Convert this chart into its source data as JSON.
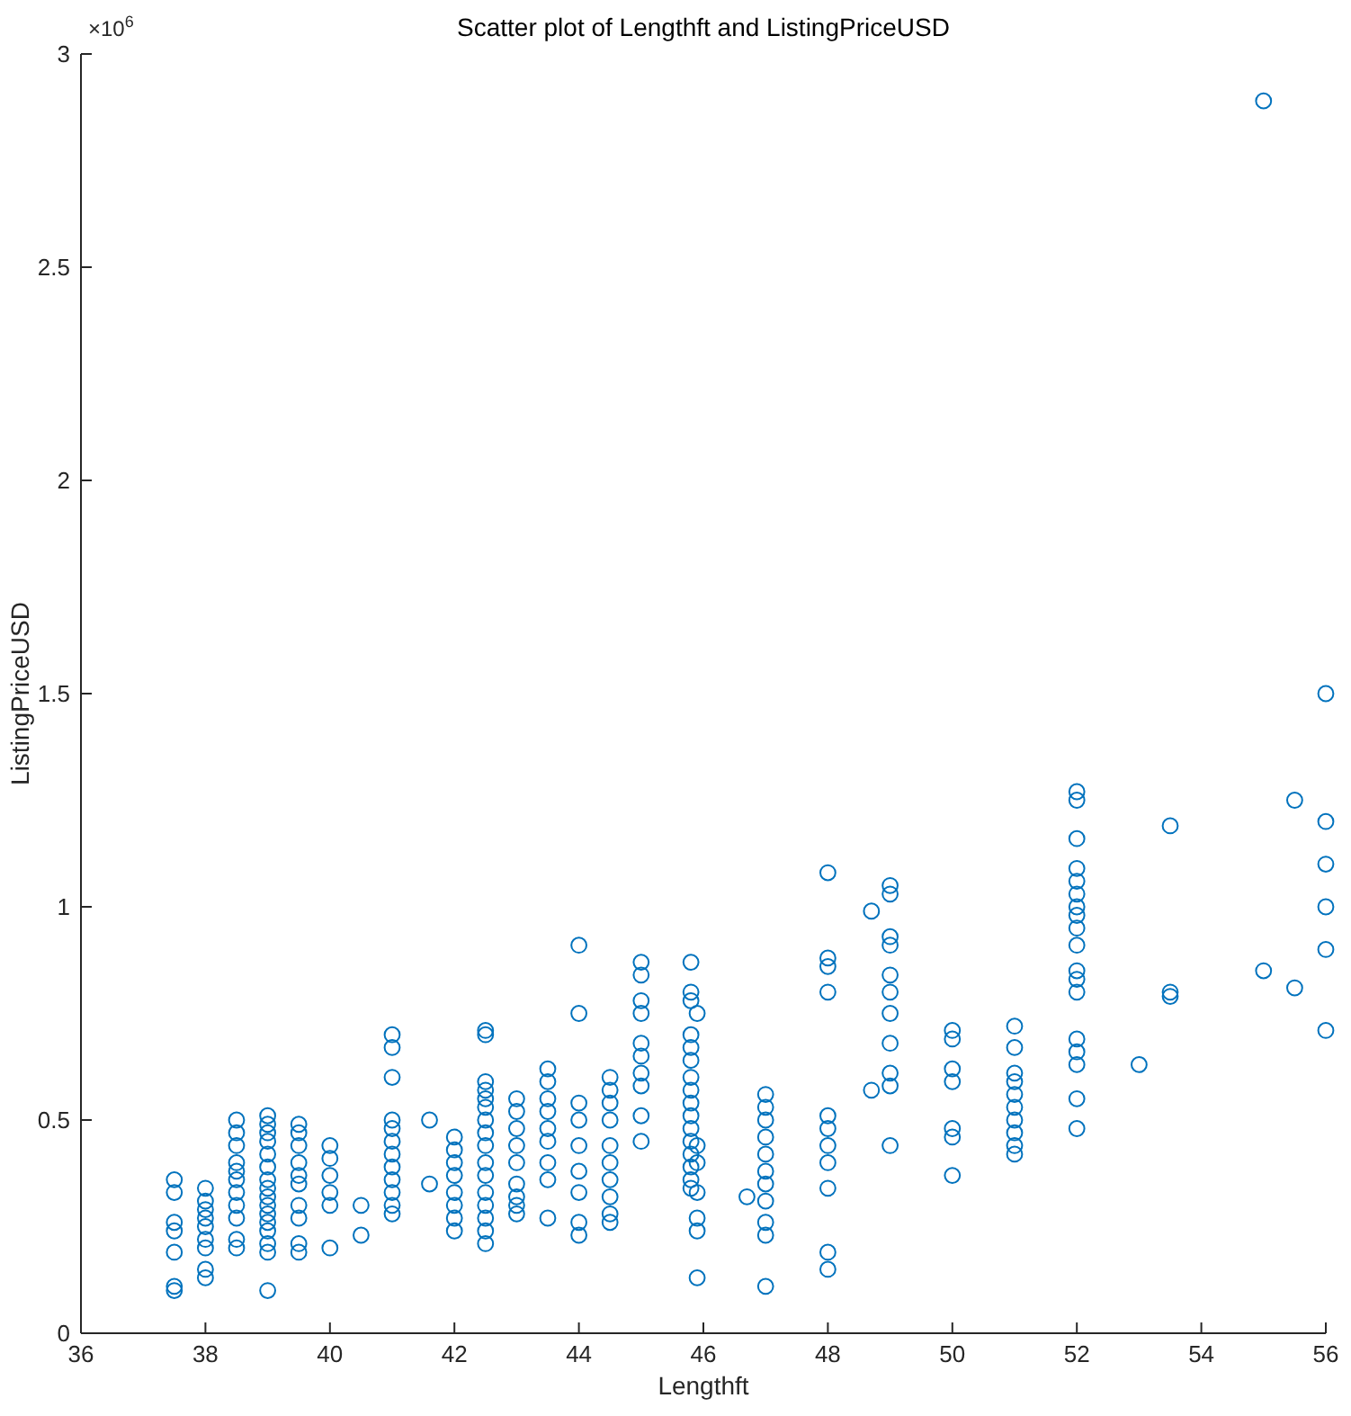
{
  "chart_data": {
    "type": "scatter",
    "title": "Scatter plot of Lengthft and ListingPriceUSD",
    "xlabel": "Lengthft",
    "ylabel": "ListingPriceUSD",
    "annotations": [
      "×10$^{6}$"
    ],
    "marker": "circle",
    "grid": false,
    "xlim": [
      36,
      56
    ],
    "xticks": [
      36,
      38,
      40,
      42,
      44,
      46,
      48,
      50,
      52,
      54,
      56
    ],
    "ylim": [
      0,
      3
    ],
    "yticks": [
      0,
      0.5,
      1,
      1.5,
      2,
      2.5,
      3
    ],
    "series": [
      {
        "color": "#0072bd",
        "x": [
          37.5,
          37.5,
          37.5,
          37.5,
          37.5,
          37.5,
          37.5,
          38,
          38,
          38,
          38,
          38,
          38,
          38,
          38,
          38,
          38.5,
          38.5,
          38.5,
          38.5,
          38.5,
          38.5,
          38.5,
          38.5,
          38.5,
          38.5,
          38.5,
          39,
          39,
          39,
          39,
          39,
          39,
          39,
          39,
          39,
          39,
          39,
          39,
          39,
          39,
          39,
          39,
          39.5,
          39.5,
          39.5,
          39.5,
          39.5,
          39.5,
          39.5,
          39.5,
          39.5,
          39.5,
          40,
          40,
          40,
          40,
          40,
          40,
          40.5,
          40.5,
          41,
          41,
          41,
          41,
          41,
          41,
          41,
          41,
          41,
          41,
          41,
          41,
          41.6,
          41.6,
          42,
          42,
          42,
          42,
          42,
          42,
          42,
          42,
          42.5,
          42.5,
          42.5,
          42.5,
          42.5,
          42.5,
          42.5,
          42.5,
          42.5,
          42.5,
          42.5,
          42.5,
          42.5,
          42.5,
          42.5,
          42.5,
          43,
          43,
          43,
          43,
          43,
          43,
          43,
          43,
          43,
          43.5,
          43.5,
          43.5,
          43.5,
          43.5,
          43.5,
          43.5,
          43.5,
          43.5,
          44,
          44,
          44,
          44,
          44,
          44,
          44,
          44,
          44,
          44.5,
          44.5,
          44.5,
          44.5,
          44.5,
          44.5,
          44.5,
          44.5,
          44.5,
          44.5,
          45,
          45,
          45,
          45,
          45,
          45,
          45,
          45,
          45,
          45,
          45.8,
          45.8,
          45.8,
          45.8,
          45.8,
          45.8,
          45.8,
          45.8,
          45.8,
          45.8,
          45.8,
          45.8,
          45.8,
          45.8,
          45.8,
          45.8,
          45.9,
          45.9,
          45.9,
          45.9,
          45.9,
          45.9,
          45.9,
          46.7,
          47,
          47,
          47,
          47,
          47,
          47,
          47,
          47,
          47,
          47,
          47,
          48,
          48,
          48,
          48,
          48,
          48,
          48,
          48,
          48,
          48,
          48,
          48.7,
          48.7,
          49,
          49,
          49,
          49,
          49,
          49,
          49,
          49,
          49,
          49,
          49,
          50,
          50,
          50,
          50,
          50,
          50,
          50,
          51,
          51,
          51,
          51,
          51,
          51,
          51,
          51,
          51,
          51,
          52,
          52,
          52,
          52,
          52,
          52,
          52,
          52,
          52,
          52,
          52,
          52,
          52,
          52,
          52,
          52,
          52,
          52,
          53,
          53.5,
          53.5,
          53.5,
          55,
          55,
          55.5,
          55.5,
          56,
          56,
          56,
          56,
          56,
          56
        ],
        "values": [
          0.36,
          0.33,
          0.26,
          0.24,
          0.19,
          0.11,
          0.1,
          0.34,
          0.31,
          0.29,
          0.27,
          0.25,
          0.22,
          0.2,
          0.15,
          0.13,
          0.5,
          0.47,
          0.44,
          0.4,
          0.38,
          0.36,
          0.33,
          0.3,
          0.27,
          0.22,
          0.2,
          0.51,
          0.49,
          0.47,
          0.45,
          0.42,
          0.39,
          0.36,
          0.34,
          0.32,
          0.3,
          0.28,
          0.26,
          0.24,
          0.21,
          0.19,
          0.1,
          0.49,
          0.47,
          0.44,
          0.4,
          0.37,
          0.35,
          0.3,
          0.27,
          0.21,
          0.19,
          0.44,
          0.41,
          0.37,
          0.33,
          0.3,
          0.2,
          0.3,
          0.23,
          0.7,
          0.67,
          0.6,
          0.5,
          0.48,
          0.45,
          0.42,
          0.39,
          0.36,
          0.33,
          0.3,
          0.28,
          0.5,
          0.35,
          0.46,
          0.43,
          0.4,
          0.37,
          0.33,
          0.3,
          0.27,
          0.24,
          0.71,
          0.7,
          0.59,
          0.57,
          0.55,
          0.53,
          0.5,
          0.47,
          0.44,
          0.4,
          0.37,
          0.33,
          0.3,
          0.27,
          0.24,
          0.21,
          0.55,
          0.52,
          0.48,
          0.44,
          0.4,
          0.35,
          0.32,
          0.3,
          0.28,
          0.62,
          0.59,
          0.55,
          0.52,
          0.48,
          0.45,
          0.4,
          0.36,
          0.27,
          0.91,
          0.75,
          0.54,
          0.5,
          0.44,
          0.38,
          0.33,
          0.26,
          0.23,
          0.6,
          0.57,
          0.54,
          0.5,
          0.44,
          0.4,
          0.36,
          0.32,
          0.28,
          0.26,
          0.87,
          0.84,
          0.78,
          0.75,
          0.68,
          0.65,
          0.61,
          0.58,
          0.51,
          0.45,
          0.87,
          0.8,
          0.78,
          0.7,
          0.67,
          0.64,
          0.6,
          0.57,
          0.54,
          0.51,
          0.48,
          0.45,
          0.42,
          0.39,
          0.36,
          0.34,
          0.75,
          0.44,
          0.4,
          0.33,
          0.27,
          0.24,
          0.13,
          0.32,
          0.56,
          0.53,
          0.5,
          0.46,
          0.42,
          0.38,
          0.35,
          0.31,
          0.26,
          0.23,
          0.11,
          1.08,
          0.88,
          0.86,
          0.8,
          0.51,
          0.48,
          0.44,
          0.4,
          0.34,
          0.19,
          0.15,
          0.99,
          0.57,
          1.05,
          1.03,
          0.93,
          0.91,
          0.84,
          0.8,
          0.75,
          0.68,
          0.61,
          0.58,
          0.44,
          0.71,
          0.69,
          0.62,
          0.59,
          0.48,
          0.46,
          0.37,
          0.72,
          0.67,
          0.61,
          0.59,
          0.56,
          0.53,
          0.5,
          0.47,
          0.44,
          0.42,
          1.27,
          1.25,
          1.16,
          1.09,
          1.06,
          1.03,
          1,
          0.98,
          0.95,
          0.91,
          0.85,
          0.83,
          0.8,
          0.69,
          0.66,
          0.63,
          0.55,
          0.48,
          0.63,
          1.19,
          0.8,
          0.79,
          2.89,
          0.85,
          1.25,
          0.81,
          1.5,
          1.2,
          1.1,
          1,
          0.9,
          0.71
        ]
      }
    ]
  }
}
